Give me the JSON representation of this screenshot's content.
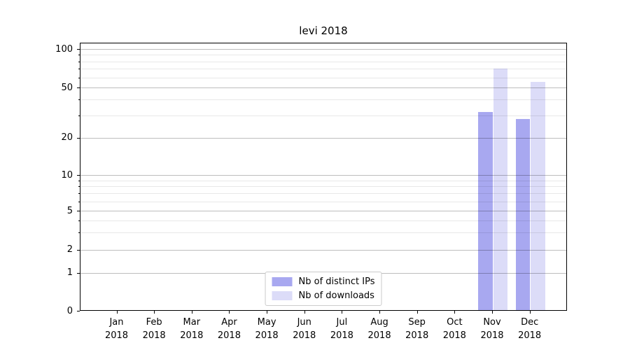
{
  "chart_data": {
    "type": "bar",
    "title": "levi 2018",
    "categories": [
      "Jan",
      "Feb",
      "Mar",
      "Apr",
      "May",
      "Jun",
      "Jul",
      "Aug",
      "Sep",
      "Oct",
      "Nov",
      "Dec"
    ],
    "category_year": "2018",
    "series": [
      {
        "name": "Nb of distinct IPs",
        "color": "#a8a8f0",
        "values": [
          0,
          0,
          0,
          0,
          0,
          0,
          0,
          0,
          0,
          0,
          32,
          28
        ]
      },
      {
        "name": "Nb of downloads",
        "color": "#dcdcf8",
        "values": [
          0,
          0,
          0,
          0,
          0,
          0,
          0,
          0,
          0,
          0,
          70,
          55
        ]
      }
    ],
    "xlabel": "",
    "ylabel": "",
    "yscale": "symlog",
    "y_major_ticks": [
      0,
      1,
      2,
      5,
      10,
      20,
      50,
      100
    ],
    "y_minor_gridlines": [
      3,
      4,
      6,
      7,
      8,
      9,
      30,
      40,
      60,
      70,
      80,
      90
    ],
    "ylim": [
      0,
      110
    ],
    "grid": true,
    "legend_position": "lower center",
    "colors": {
      "spine": "#000000",
      "major_grid": "#bdbdbd",
      "minor_grid": "#e9e9e9",
      "background": "#ffffff"
    }
  }
}
